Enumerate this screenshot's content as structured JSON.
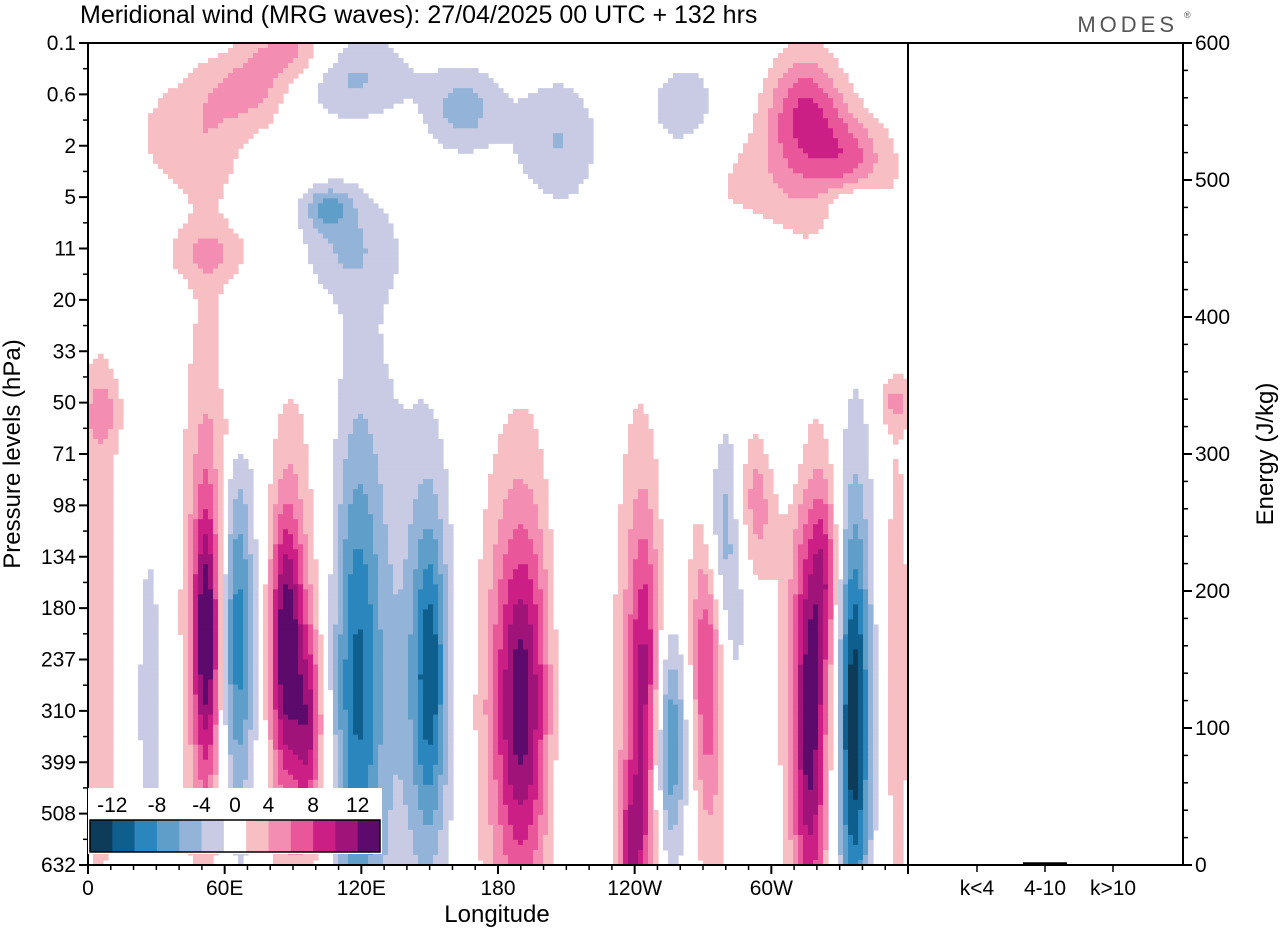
{
  "chart_data": {
    "type": "heatmap",
    "title": "Meridional wind (MRG waves):  27/04/2025  00 UTC  + 132 hrs",
    "logo": "MODES",
    "xlabel": "Longitude",
    "ylabel": "Pressure levels (hPa)",
    "x_ticks": [
      "0",
      "60E",
      "120E",
      "180",
      "120W",
      "60W"
    ],
    "x_tick_lon": [
      0,
      60,
      120,
      180,
      240,
      300
    ],
    "xlim": [
      0,
      360
    ],
    "y_ticks": [
      "0.1",
      "0.6",
      "2",
      "5",
      "11",
      "20",
      "33",
      "50",
      "71",
      "98",
      "134",
      "180",
      "237",
      "310",
      "399",
      "508",
      "632"
    ],
    "colorbar": {
      "labels": [
        "-12",
        "-8",
        "-4",
        "0",
        "4",
        "8",
        "12"
      ],
      "levels": [
        -14,
        -12,
        -10,
        -8,
        -6,
        -4,
        -2,
        2,
        4,
        6,
        8,
        10,
        12,
        14
      ],
      "colors": [
        "#0c3c5a",
        "#0f5f8e",
        "#2a86bd",
        "#5f9ec9",
        "#93b4d8",
        "#c8cbe3",
        "#ffffff",
        "#f7bfc3",
        "#f38eb2",
        "#e9579a",
        "#cc1f86",
        "#a0147a",
        "#5c0a6b"
      ]
    },
    "energy_panel": {
      "ylabel": "Energy (J/kg)",
      "ylim": [
        0,
        600
      ],
      "y_ticks": [
        "0",
        "100",
        "200",
        "300",
        "400",
        "500",
        "600"
      ],
      "categories": [
        "k<4",
        "4-10",
        "k>10"
      ],
      "values": [
        0.4,
        2.0,
        0.3
      ]
    },
    "features": [
      {
        "lon": 52,
        "lev": 11.6,
        "sx": 4,
        "sy": 1.8,
        "v": 10.5
      },
      {
        "lon": 54,
        "lev": 11,
        "sx": 9,
        "sy": 4.5,
        "v": 6
      },
      {
        "lon": 65,
        "lev": 11.5,
        "sx": 5,
        "sy": 2.2,
        "v": -7.5
      },
      {
        "lon": 66,
        "lev": 12,
        "sx": 9,
        "sy": 4,
        "v": -4.5
      },
      {
        "lon": 87,
        "lev": 11.7,
        "sx": 5,
        "sy": 1.8,
        "v": 10.8
      },
      {
        "lon": 97,
        "lev": 13.3,
        "sx": 4,
        "sy": 1.3,
        "v": 7.5
      },
      {
        "lon": 92,
        "lev": 12.6,
        "sx": 12,
        "sy": 4.5,
        "v": 5
      },
      {
        "lon": 118,
        "lev": 12.4,
        "sx": 7,
        "sy": 3,
        "v": -6.5
      },
      {
        "lon": 120,
        "lev": 12.8,
        "sx": 16,
        "sy": 5.5,
        "v": -4.5
      },
      {
        "lon": 150,
        "lev": 12.3,
        "sx": 5,
        "sy": 2,
        "v": -7
      },
      {
        "lon": 150,
        "lev": 12.3,
        "sx": 9,
        "sy": 3.5,
        "v": -4.2
      },
      {
        "lon": 190,
        "lev": 12.8,
        "sx": 8,
        "sy": 2.3,
        "v": 8.5
      },
      {
        "lon": 190,
        "lev": 13,
        "sx": 15,
        "sy": 4,
        "v": 4.8
      },
      {
        "lon": 212,
        "lev": 13.8,
        "sx": 7,
        "sy": 5,
        "v": -3.2
      },
      {
        "lon": 245,
        "lev": 12.5,
        "sx": 5,
        "sy": 2.2,
        "v": 8
      },
      {
        "lon": 241,
        "lev": 14,
        "sx": 8,
        "sy": 5,
        "v": 4.5
      },
      {
        "lon": 239,
        "lev": 15.6,
        "sx": 4,
        "sy": 1,
        "v": 6
      },
      {
        "lon": 255,
        "lev": 13.6,
        "sx": 5,
        "sy": 1.3,
        "v": -6
      },
      {
        "lon": 256,
        "lev": 13.8,
        "sx": 8,
        "sy": 2.5,
        "v": -3.5
      },
      {
        "lon": 272,
        "lev": 11.8,
        "sx": 5,
        "sy": 2.2,
        "v": 6
      },
      {
        "lon": 274,
        "lev": 11.5,
        "sx": 9,
        "sy": 4,
        "v": 4
      },
      {
        "lon": 282,
        "lev": 10.8,
        "sx": 6,
        "sy": 2.4,
        "v": -5
      },
      {
        "lon": 276,
        "lev": 9.4,
        "sx": 6,
        "sy": 1.3,
        "v": -6
      },
      {
        "lon": 293,
        "lev": 8.6,
        "sx": 7,
        "sy": 1.2,
        "v": 7
      },
      {
        "lon": 299,
        "lev": 7.8,
        "sx": 14,
        "sy": 1,
        "v": -3.3
      },
      {
        "lon": 317,
        "lev": 13.2,
        "sx": 5,
        "sy": 2.5,
        "v": 8.8
      },
      {
        "lon": 317,
        "lev": 12.8,
        "sx": 9,
        "sy": 4.8,
        "v": 5
      },
      {
        "lon": 324,
        "lev": 10.3,
        "sx": 4,
        "sy": 1.3,
        "v": 6
      },
      {
        "lon": 336,
        "lev": 13.3,
        "sx": 4.5,
        "sy": 2.5,
        "v": -9.5
      },
      {
        "lon": 337,
        "lev": 13,
        "sx": 8,
        "sy": 4.5,
        "v": -5
      },
      {
        "lon": 354,
        "lev": 12.3,
        "sx": 6,
        "sy": 5,
        "v": 3.2
      },
      {
        "lon": 5,
        "lev": 11.5,
        "sx": 7,
        "sy": 5,
        "v": 3.2
      },
      {
        "lon": 27,
        "lev": 12.8,
        "sx": 5,
        "sy": 3,
        "v": -3
      },
      {
        "lon": 262,
        "lev": 1.3,
        "sx": 14,
        "sy": 0.8,
        "v": -3.2
      },
      {
        "lon": 110,
        "lev": 0.6,
        "sx": 22,
        "sy": 0.6,
        "v": -4.5
      },
      {
        "lon": 165,
        "lev": 1.3,
        "sx": 12,
        "sy": 0.6,
        "v": -4.8
      },
      {
        "lon": 205,
        "lev": 1.9,
        "sx": 14,
        "sy": 0.9,
        "v": -4
      },
      {
        "lon": 90,
        "lev": 0.2,
        "sx": 14,
        "sy": 0.4,
        "v": 6
      },
      {
        "lon": 45,
        "lev": 1.8,
        "sx": 20,
        "sy": 0.9,
        "v": 3.2
      },
      {
        "lon": 73,
        "lev": 0.9,
        "sx": 14,
        "sy": 0.5,
        "v": 4.5
      },
      {
        "lon": 315,
        "lev": 1.3,
        "sx": 12,
        "sy": 0.8,
        "v": 7.5
      },
      {
        "lon": 335,
        "lev": 2.2,
        "sx": 10,
        "sy": 0.6,
        "v": 4.5
      },
      {
        "lon": 310,
        "lev": 2.6,
        "sx": 30,
        "sy": 0.8,
        "v": 3.2
      },
      {
        "lon": 55,
        "lev": 4.1,
        "sx": 16,
        "sy": 0.4,
        "v": 3.2
      },
      {
        "lon": 110,
        "lev": 4,
        "sx": 18,
        "sy": 0.7,
        "v": -3.3
      },
      {
        "lon": 105,
        "lev": 3.2,
        "sx": 8,
        "sy": 0.3,
        "v": -5
      },
      {
        "lon": 335,
        "lev": 3.1,
        "sx": 8,
        "sy": 0.3,
        "v": -3.1
      },
      {
        "lon": 6,
        "lev": 7.2,
        "sx": 6,
        "sy": 0.5,
        "v": 3.3
      },
      {
        "lon": 67,
        "lev": 7.5,
        "sx": 5,
        "sy": 0.3,
        "v": 3.3
      },
      {
        "lon": 355,
        "lev": 7.0,
        "sx": 6,
        "sy": 0.3,
        "v": 3.2
      }
    ]
  }
}
